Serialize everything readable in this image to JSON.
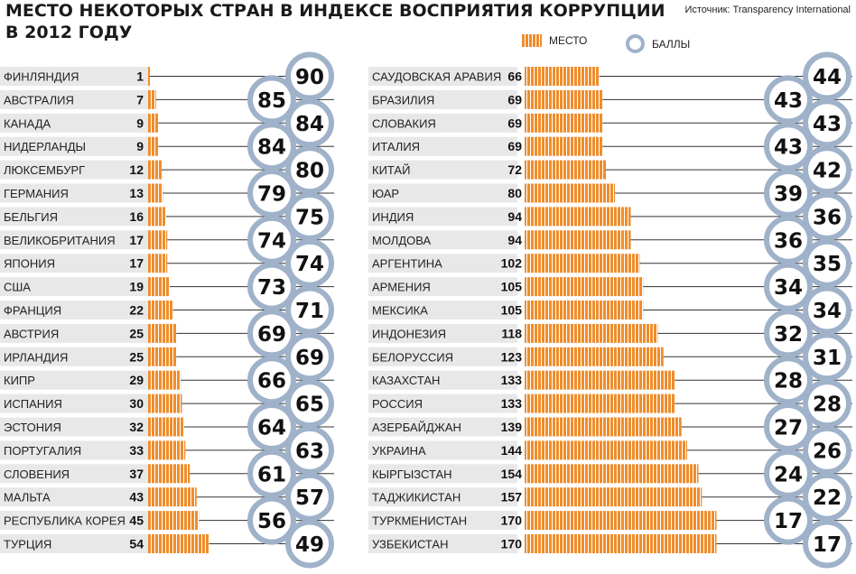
{
  "header": {
    "title_line1": "МЕСТО НЕКОТОРЫХ СТРАН В ИНДЕКСЕ ВОСПРИЯТИЯ КОРРУПЦИИ",
    "title_line2": "В 2012 ГОДУ",
    "source": "Источник: Transparency International"
  },
  "legend": {
    "rank_label": "МЕСТО",
    "score_label": "БАЛЛЫ"
  },
  "colors": {
    "bar": "#ef8d2c",
    "stripe_bg": "#e8e8e8",
    "ring": "#9fb2c9",
    "text": "#111111"
  },
  "chart_data": {
    "type": "bar",
    "series": [
      {
        "name": "МЕСТО",
        "unit": "rank"
      },
      {
        "name": "БАЛЛЫ",
        "unit": "score"
      }
    ],
    "panels": [
      {
        "countries": [
          "ФИНЛЯНДИЯ",
          "АВСТРАЛИЯ",
          "КАНАДА",
          "НИДЕРЛАНДЫ",
          "ЛЮКСЕМБУРГ",
          "ГЕРМАНИЯ",
          "БЕЛЬГИЯ",
          "ВЕЛИКОБРИТАНИЯ",
          "ЯПОНИЯ",
          "США",
          "ФРАНЦИЯ",
          "АВСТРИЯ",
          "ИРЛАНДИЯ",
          "КИПР",
          "ИСПАНИЯ",
          "ЭСТОНИЯ",
          "ПОРТУГАЛИЯ",
          "СЛОВЕНИЯ",
          "МАЛЬТА",
          "РЕСПУБЛИКА КОРЕЯ",
          "ТУРЦИЯ"
        ],
        "ranks": [
          1,
          7,
          9,
          9,
          12,
          13,
          16,
          17,
          17,
          19,
          22,
          25,
          25,
          29,
          30,
          32,
          33,
          37,
          43,
          45,
          54
        ],
        "scores": [
          90,
          85,
          84,
          84,
          80,
          79,
          75,
          74,
          74,
          73,
          71,
          69,
          69,
          66,
          65,
          64,
          63,
          61,
          57,
          56,
          49
        ]
      },
      {
        "countries": [
          "САУДОВСКАЯ АРАВИЯ",
          "БРАЗИЛИЯ",
          "СЛОВАКИЯ",
          "ИТАЛИЯ",
          "КИТАЙ",
          "ЮАР",
          "ИНДИЯ",
          "МОЛДОВА",
          "АРГЕНТИНА",
          "АРМЕНИЯ",
          "МЕКСИКА",
          "ИНДОНЕЗИЯ",
          "БЕЛОРУССИЯ",
          "КАЗАХСТАН",
          "РОССИЯ",
          "АЗЕРБАЙДЖАН",
          "УКРАИНА",
          "КЫРГЫЗСТАН",
          "ТАДЖИКИСТАН",
          "ТУРКМЕНИСТАН",
          "УЗБЕКИСТАН"
        ],
        "ranks": [
          66,
          69,
          69,
          69,
          72,
          80,
          94,
          94,
          102,
          105,
          105,
          118,
          123,
          133,
          133,
          139,
          144,
          154,
          157,
          170,
          170
        ],
        "scores": [
          44,
          43,
          43,
          43,
          42,
          39,
          36,
          36,
          35,
          34,
          34,
          32,
          31,
          28,
          28,
          27,
          26,
          24,
          22,
          17,
          17
        ]
      }
    ]
  }
}
